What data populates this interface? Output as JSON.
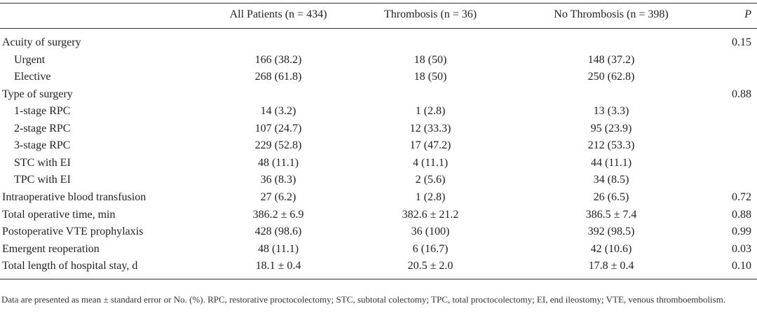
{
  "table": {
    "header": {
      "all": "All Patients (n = 434)",
      "thrombosis": "Thrombosis (n = 36)",
      "no_thrombosis": "No Thrombosis (n = 398)",
      "p": "P"
    },
    "rows": [
      {
        "label": "Acuity of surgery",
        "p": "0.15",
        "children": [
          {
            "label": "Urgent",
            "all": "166 (38.2)",
            "thrombosis": "18 (50)",
            "no_thrombosis": "148 (37.2)"
          },
          {
            "label": "Elective",
            "all": "268 (61.8)",
            "thrombosis": "18 (50)",
            "no_thrombosis": "250 (62.8)"
          }
        ]
      },
      {
        "label": "Type of surgery",
        "p": "0.88",
        "children": [
          {
            "label": "1-stage RPC",
            "all": "14 (3.2)",
            "thrombosis": "1 (2.8)",
            "no_thrombosis": "13 (3.3)"
          },
          {
            "label": "2-stage RPC",
            "all": "107 (24.7)",
            "thrombosis": "12 (33.3)",
            "no_thrombosis": "95 (23.9)"
          },
          {
            "label": "3-stage RPC",
            "all": "229 (52.8)",
            "thrombosis": "17 (47.2)",
            "no_thrombosis": "212 (53.3)"
          },
          {
            "label": "STC with EI",
            "all": "48 (11.1)",
            "thrombosis": "4 (11.1)",
            "no_thrombosis": "44 (11.1)"
          },
          {
            "label": "TPC with EI",
            "all": "36 (8.3)",
            "thrombosis": "2 (5.6)",
            "no_thrombosis": "34 (8.5)"
          }
        ]
      },
      {
        "label": "Intraoperative blood transfusion",
        "all": "27 (6.2)",
        "thrombosis": "1 (2.8)",
        "no_thrombosis": "26 (6.5)",
        "p": "0.72"
      },
      {
        "label": "Total operative time, min",
        "all": "386.2 ± 6.9",
        "thrombosis": "382.6 ± 21.2",
        "no_thrombosis": "386.5 ± 7.4",
        "p": "0.88"
      },
      {
        "label": "Postoperative VTE prophylaxis",
        "all": "428 (98.6)",
        "thrombosis": "36 (100)",
        "no_thrombosis": "392 (98.5)",
        "p": "0.99"
      },
      {
        "label": "Emergent reoperation",
        "all": "48 (11.1)",
        "thrombosis": "6 (16.7)",
        "no_thrombosis": "42 (10.6)",
        "p": "0.03"
      },
      {
        "label": "Total length of hospital stay, d",
        "all": "18.1 ± 0.4",
        "thrombosis": "20.5 ± 2.0",
        "no_thrombosis": "17.8 ± 0.4",
        "p": "0.10"
      }
    ]
  },
  "footnote": "Data are presented as mean ± standard error or No. (%). RPC, restorative proctocolectomy; STC, subtotal colectomy; TPC, total proctocolectomy; EI, end ileostomy; VTE, venous thromboembolism."
}
